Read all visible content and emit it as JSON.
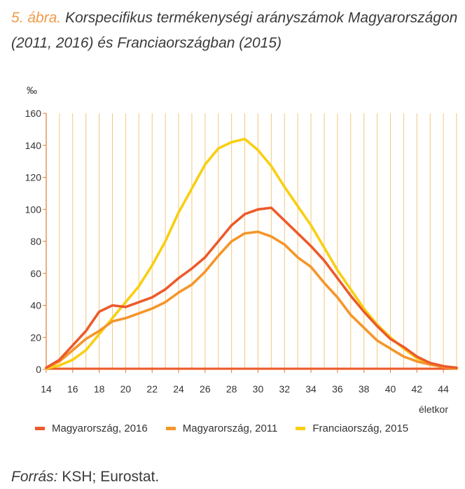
{
  "title": {
    "figure_number": "5. ábra.",
    "text": "Korspecifikus termékenységi arányszámok Magyarországon (2011, 2016) és Franciaországban (2015)"
  },
  "source": {
    "label": "Forrás:",
    "text": " KSH; Eurostat."
  },
  "colors": {
    "hu2016": "#ec5a2b",
    "hu2011": "#f4962a",
    "fr2015": "#f8cf12",
    "grid": "#f2c77f",
    "axis": "#e07a2e"
  },
  "chart_data": {
    "type": "line",
    "title": "Korspecifikus termékenységi arányszámok Magyarországon (2011, 2016) és Franciaországban (2015)",
    "ylabel": "‰",
    "xlabel": "életkor",
    "xlim": [
      14,
      45
    ],
    "ylim": [
      0,
      160
    ],
    "xticks": [
      14,
      16,
      18,
      20,
      22,
      24,
      26,
      28,
      30,
      32,
      34,
      36,
      38,
      40,
      42,
      44
    ],
    "yticks": [
      0,
      20,
      40,
      60,
      80,
      100,
      120,
      140,
      160
    ],
    "legend_position": "bottom",
    "x": [
      14,
      15,
      16,
      17,
      18,
      19,
      20,
      21,
      22,
      23,
      24,
      25,
      26,
      27,
      28,
      29,
      30,
      31,
      32,
      33,
      34,
      35,
      36,
      37,
      38,
      39,
      40,
      41,
      42,
      43,
      44,
      45
    ],
    "series": [
      {
        "name": "Magyarország, 2016",
        "color_key": "hu2016",
        "values": [
          1,
          6,
          15,
          24,
          36,
          40,
          39,
          42,
          45,
          50,
          57,
          63,
          70,
          80,
          90,
          97,
          100,
          101,
          93,
          85,
          77,
          68,
          57,
          46,
          36,
          27,
          19,
          14,
          8,
          4,
          2,
          1
        ]
      },
      {
        "name": "Magyarország, 2011",
        "color_key": "hu2011",
        "values": [
          1,
          5,
          12,
          19,
          24,
          30,
          32,
          35,
          38,
          42,
          48,
          53,
          61,
          71,
          80,
          85,
          86,
          83,
          78,
          70,
          64,
          54,
          45,
          34,
          26,
          18,
          13,
          8,
          5,
          3,
          1.5,
          0.5
        ]
      },
      {
        "name": "Franciaország, 2015",
        "color_key": "fr2015",
        "values": [
          0.5,
          2.5,
          6,
          12,
          22,
          32,
          42,
          52,
          65,
          80,
          98,
          113,
          128,
          138,
          142,
          144,
          137,
          127,
          114,
          102,
          90,
          76,
          62,
          50,
          38,
          28,
          20,
          13,
          7,
          3.5,
          1.5,
          0.5
        ]
      }
    ]
  }
}
